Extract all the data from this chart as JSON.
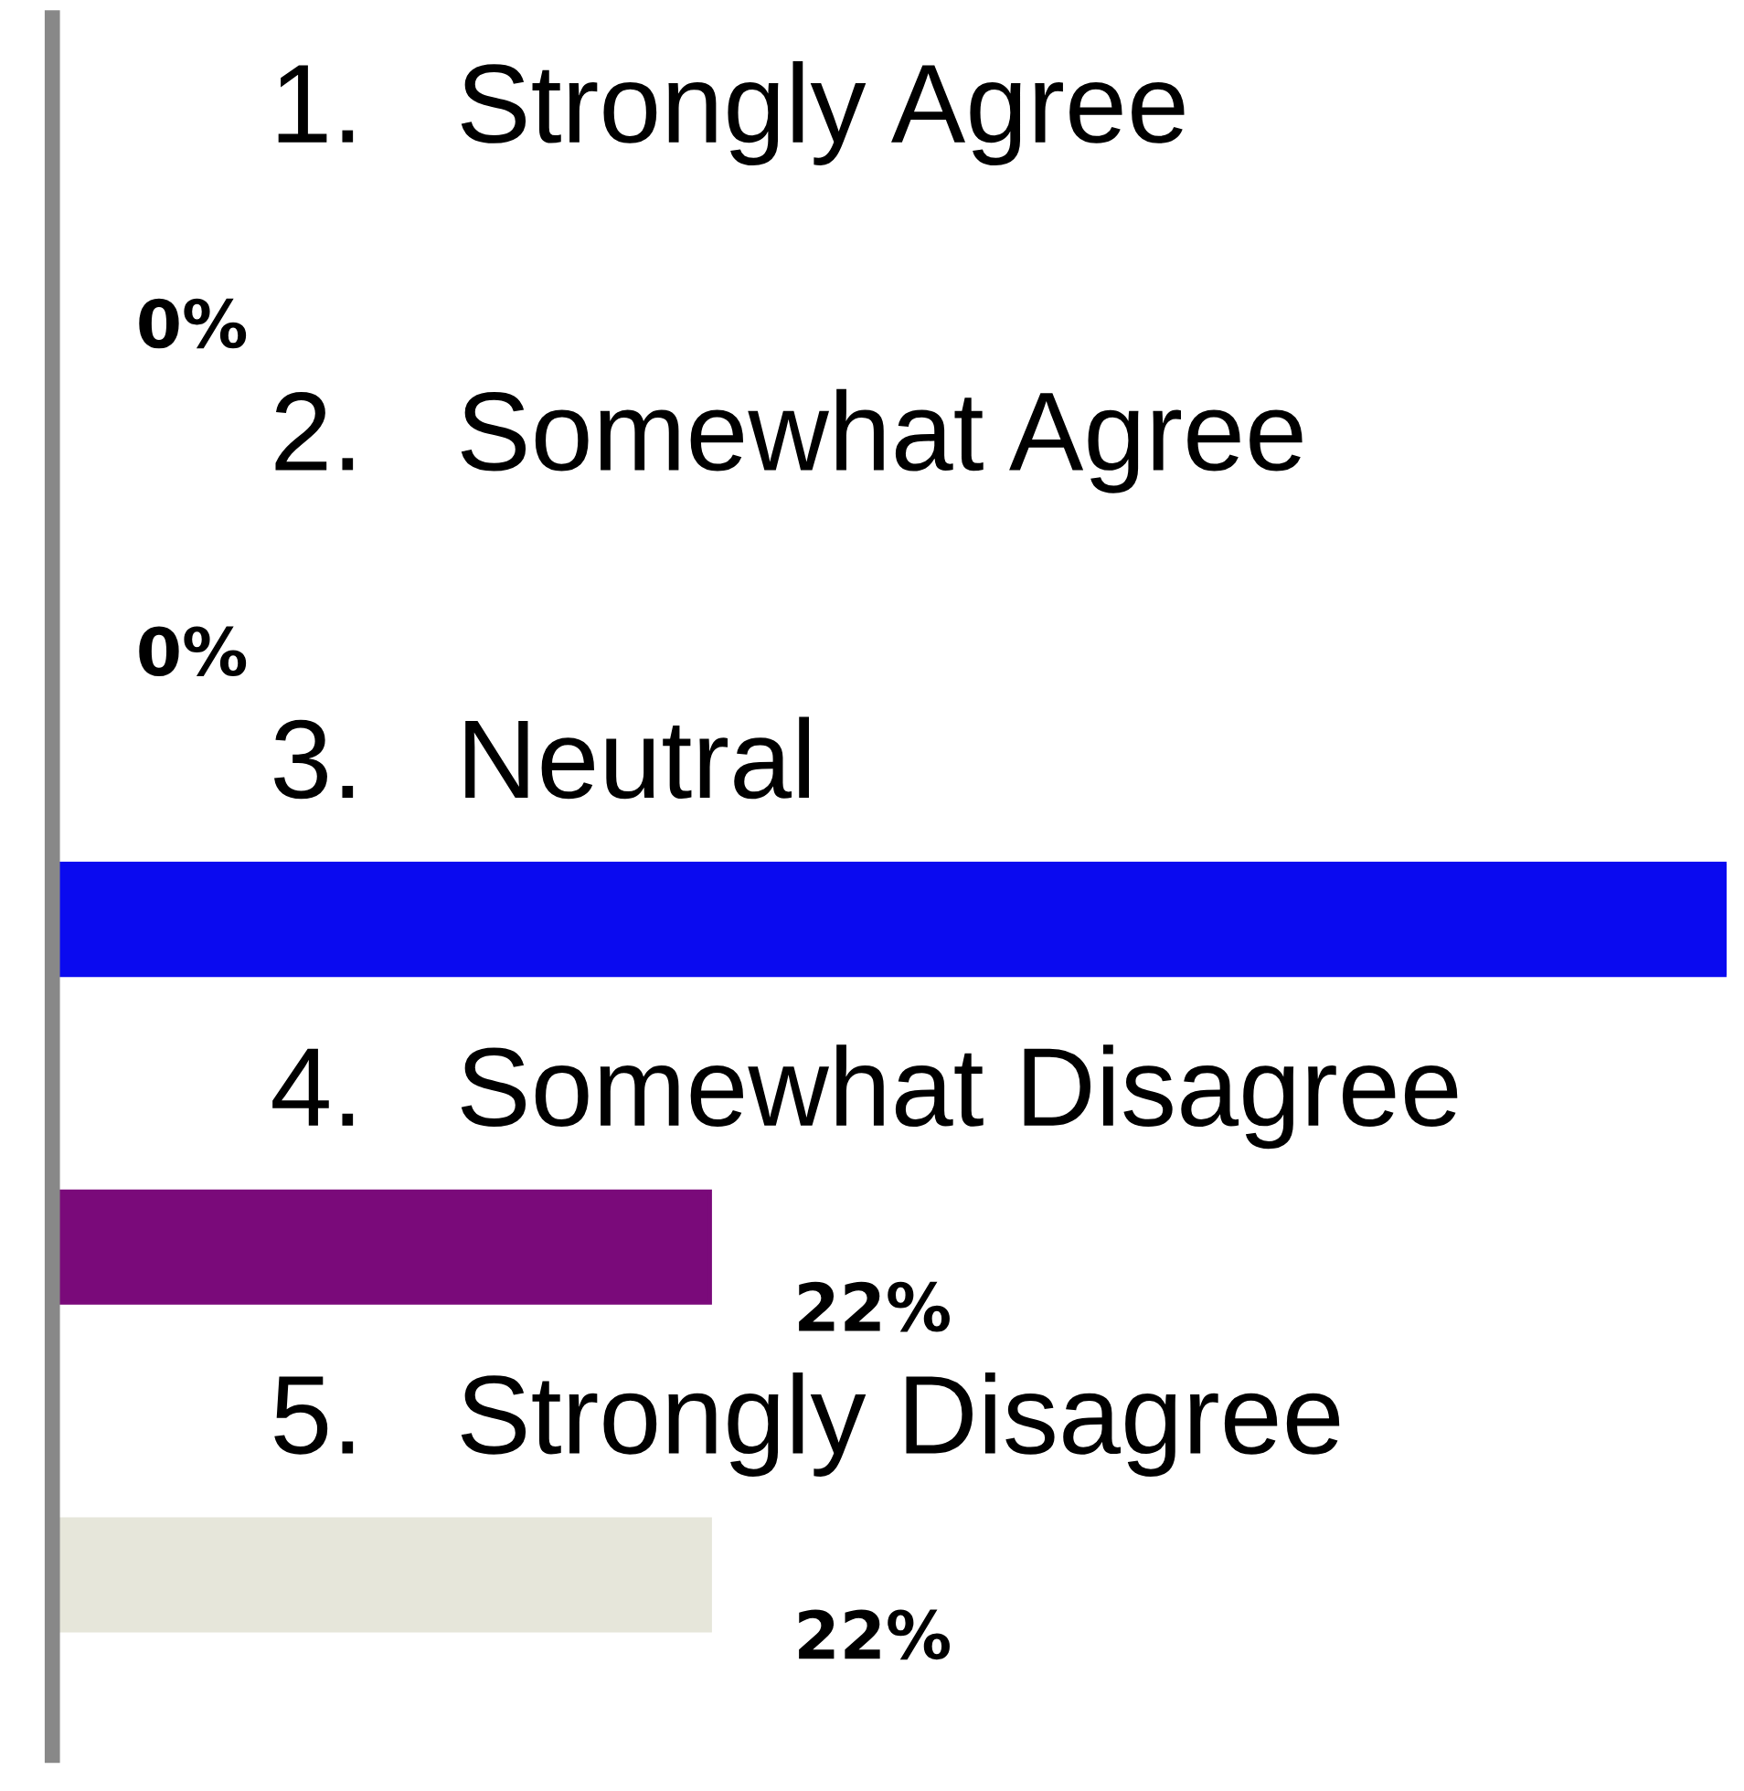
{
  "chart_data": {
    "type": "bar",
    "orientation": "horizontal",
    "categories": [
      "1.   Strongly Agree",
      "2.   Somewhat Agree",
      "3.   Neutral",
      "4.   Somewhat Disagree",
      "5.   Strongly Disagree"
    ],
    "values": [
      0,
      0,
      56,
      22,
      22
    ],
    "colors": [
      "#24466e",
      "#6e2a2a",
      "#0a0af0",
      "#7a0a7a",
      "#e6e6da"
    ],
    "value_labels": [
      "0%",
      "0%",
      null,
      "22%",
      "22%"
    ],
    "legend": false
  }
}
